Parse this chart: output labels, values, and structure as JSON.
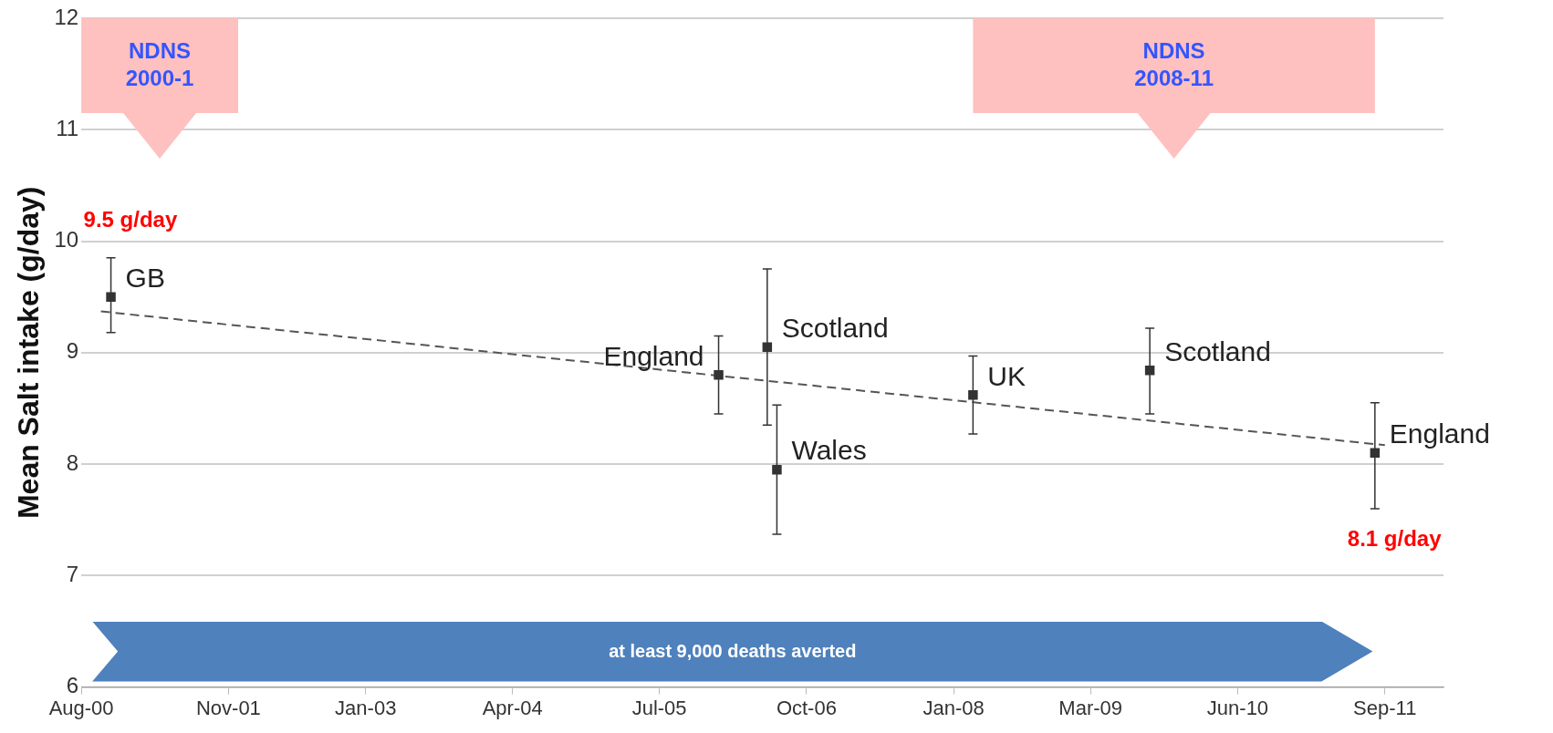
{
  "chart_data": {
    "type": "scatter",
    "ylabel": "Mean Salt intake (g/day)",
    "xlim": [
      "2000-08",
      "2012-03"
    ],
    "ylim": [
      6,
      12
    ],
    "xticks": [
      {
        "value": "2000-08",
        "label": "Aug-00"
      },
      {
        "value": "2001-11",
        "label": "Nov-01"
      },
      {
        "value": "2003-01",
        "label": "Jan-03"
      },
      {
        "value": "2004-04",
        "label": "Apr-04"
      },
      {
        "value": "2005-07",
        "label": "Jul-05"
      },
      {
        "value": "2006-10",
        "label": "Oct-06"
      },
      {
        "value": "2008-01",
        "label": "Jan-08"
      },
      {
        "value": "2009-03",
        "label": "Mar-09"
      },
      {
        "value": "2010-06",
        "label": "Jun-10"
      },
      {
        "value": "2011-09",
        "label": "Sep-11"
      }
    ],
    "yticks": [
      6,
      7,
      8,
      9,
      10,
      11,
      12
    ],
    "grid": "y",
    "legend": false,
    "series": [
      {
        "color": "#333333",
        "marker": "square",
        "x": [
          "2000-11",
          "2006-01",
          "2006-06",
          "2006-07",
          "2008-03",
          "2009-09",
          "2011-08"
        ],
        "values": [
          9.5,
          8.8,
          9.05,
          7.95,
          8.62,
          8.84,
          8.1
        ],
        "errors": [
          [
            9.18,
            9.85
          ],
          [
            8.45,
            9.15
          ],
          [
            8.35,
            9.75
          ],
          [
            7.37,
            8.53
          ],
          [
            8.27,
            8.97
          ],
          [
            8.45,
            9.22
          ],
          [
            7.6,
            8.55
          ]
        ],
        "value_labels": [
          "9.5 g/day",
          null,
          null,
          null,
          null,
          null,
          "8.1 g/day"
        ]
      },
      {
        "type": "line",
        "color": "#555555",
        "line_style": "dashed",
        "marker": "none",
        "x": [
          "2000-10",
          "2011-09"
        ],
        "values": [
          9.37,
          8.17
        ]
      }
    ],
    "bands": [
      {
        "axis": "x",
        "from": "2000-08",
        "to": "2001-12",
        "label": "NDNS 2000-1",
        "color": "#ffc0c0"
      },
      {
        "axis": "x",
        "from": "2008-03",
        "to": "2011-08",
        "label": "NDNS 2008-11",
        "color": "#ffc0c0"
      }
    ],
    "annotations": [
      {
        "text": "GB",
        "x": "2000-11",
        "y": 9.5
      },
      {
        "text": "England",
        "x": "2006-01",
        "y": 8.8
      },
      {
        "text": "Scotland",
        "x": "2006-06",
        "y": 9.05
      },
      {
        "text": "Wales",
        "x": "2006-07",
        "y": 7.95
      },
      {
        "text": "UK",
        "x": "2008-03",
        "y": 8.62
      },
      {
        "text": "Scotland",
        "x": "2009-09",
        "y": 8.84
      },
      {
        "text": "England",
        "x": "2011-08",
        "y": 8.1
      },
      "at least 9,000 deaths averted"
    ]
  }
}
